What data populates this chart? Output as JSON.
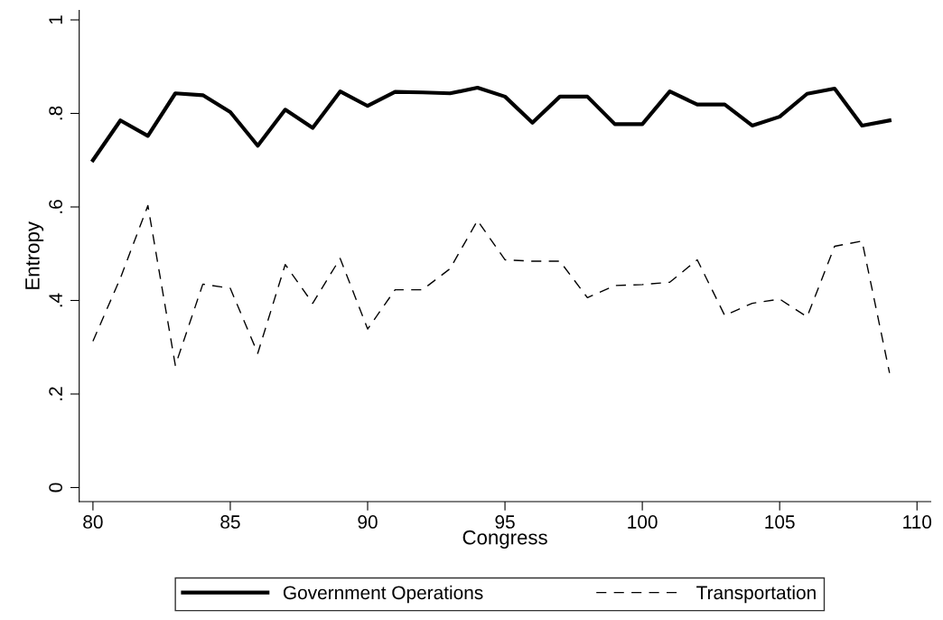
{
  "chart_data": {
    "type": "line",
    "xlabel": "Congress",
    "ylabel": "Entropy",
    "x": [
      80,
      81,
      82,
      83,
      84,
      85,
      86,
      87,
      88,
      89,
      90,
      91,
      92,
      93,
      94,
      95,
      96,
      97,
      98,
      99,
      100,
      101,
      102,
      103,
      104,
      105,
      106,
      107,
      108,
      109
    ],
    "series": [
      {
        "name": "Government Operations",
        "color": "#000000",
        "line_style": "solid",
        "values": [
          0.7,
          0.785,
          0.752,
          0.843,
          0.839,
          0.803,
          0.731,
          0.808,
          0.769,
          0.847,
          0.816,
          0.846,
          0.845,
          0.843,
          0.855,
          0.836,
          0.78,
          0.836,
          0.836,
          0.777,
          0.777,
          0.847,
          0.819,
          0.819,
          0.774,
          0.793,
          0.842,
          0.853,
          0.774,
          0.785
        ]
      },
      {
        "name": "Transportation",
        "color": "#000000",
        "line_style": "dashed",
        "values": [
          0.313,
          0.448,
          0.603,
          0.261,
          0.435,
          0.426,
          0.287,
          0.477,
          0.394,
          0.49,
          0.339,
          0.423,
          0.423,
          0.468,
          0.571,
          0.487,
          0.484,
          0.484,
          0.406,
          0.432,
          0.434,
          0.439,
          0.487,
          0.368,
          0.394,
          0.403,
          0.365,
          0.516,
          0.527,
          0.245
        ]
      }
    ],
    "xlim": [
      79.5,
      110.5
    ],
    "xticks": [
      80,
      85,
      90,
      95,
      100,
      105,
      110
    ],
    "ylim": [
      -0.03,
      1.02
    ],
    "yticks": [
      {
        "value": 0,
        "label": "0"
      },
      {
        "value": 0.2,
        "label": ".2"
      },
      {
        "value": 0.4,
        "label": ".4"
      },
      {
        "value": 0.6,
        "label": ".6"
      },
      {
        "value": 0.8,
        "label": ".8"
      },
      {
        "value": 1,
        "label": "1"
      }
    ],
    "grid": false,
    "legend": "bottom",
    "marker": "none"
  }
}
